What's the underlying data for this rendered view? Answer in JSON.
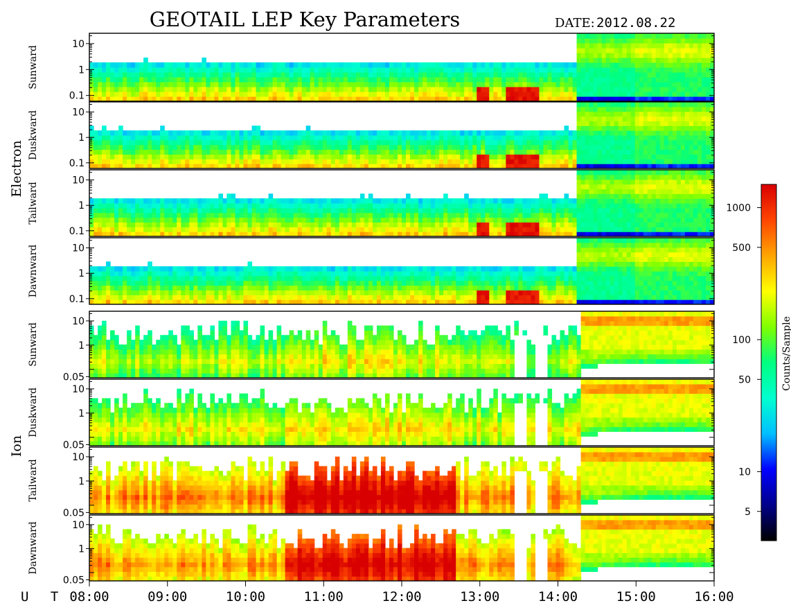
{
  "chart_data": {
    "type": "heatmap",
    "title": "GEOTAIL LEP Key Parameters",
    "date_label": "DATE:",
    "date_value": "2012.08.22",
    "x_label": "U T",
    "x_ticks": [
      "08:00",
      "09:00",
      "10:00",
      "11:00",
      "12:00",
      "13:00",
      "14:00",
      "15:00",
      "16:00"
    ],
    "x_range_hours": [
      8,
      16
    ],
    "colorbar": {
      "label": "Counts/Sample",
      "scale": "log",
      "range": [
        3,
        1500
      ],
      "ticks": [
        5,
        10,
        50,
        100,
        500,
        1000
      ],
      "colors": [
        "#000000",
        "#00008b",
        "#0000ff",
        "#00bfff",
        "#00ffd0",
        "#00ff80",
        "#80ff00",
        "#ffff00",
        "#ffa500",
        "#ff4500",
        "#d80000"
      ]
    },
    "groups": [
      {
        "label": "Electron",
        "y_scale": "log",
        "y_range": [
          0.06,
          25
        ],
        "y_ticks": [
          {
            "value": 0.1,
            "label": "0.1"
          },
          {
            "value": 1,
            "label": "1"
          },
          {
            "value": 10,
            "label": "10"
          }
        ],
        "panels": [
          {
            "direction": "Sunward"
          },
          {
            "direction": "Duskward"
          },
          {
            "direction": "Tailward"
          },
          {
            "direction": "Dawnward"
          }
        ]
      },
      {
        "label": "Ion",
        "y_scale": "log",
        "y_range": [
          0.045,
          25
        ],
        "y_ticks": [
          {
            "value": 0.05,
            "label": "0.05"
          },
          {
            "value": 1,
            "label": "1"
          },
          {
            "value": 10,
            "label": "10"
          }
        ],
        "panels": [
          {
            "direction": "Sunward"
          },
          {
            "direction": "Duskward"
          },
          {
            "direction": "Tailward"
          },
          {
            "direction": "Dawnward"
          }
        ]
      }
    ],
    "data_gaps_ut_hours": [
      [
        13.42,
        13.62
      ],
      [
        13.7,
        13.85
      ]
    ],
    "ion_gap_y_floor": 0.05,
    "ion_gap_y_ceiling": 3.0
  }
}
